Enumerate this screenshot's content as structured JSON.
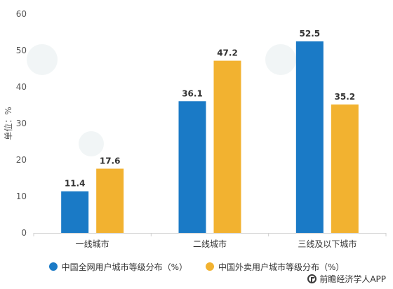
{
  "chart_data": {
    "type": "bar",
    "categories": [
      "一线城市",
      "二线城市",
      "三线及以下城市"
    ],
    "series": [
      {
        "name": "中国全网用户城市等级分布（%）",
        "color": "#1a7ac6",
        "values": [
          11.4,
          36.1,
          52.5
        ]
      },
      {
        "name": "中国外卖用户城市等级分布（%）",
        "color": "#f2b230",
        "values": [
          17.6,
          47.2,
          35.2
        ]
      }
    ],
    "data_labels": [
      [
        "11.4",
        "36.1",
        "52.5"
      ],
      [
        "17.6",
        "47.2",
        "35.2"
      ]
    ],
    "ylabel": "单位：%",
    "ylim": [
      0,
      60
    ],
    "yticks": [
      0,
      10,
      20,
      30,
      40,
      50,
      60
    ],
    "grid": false,
    "legend_position": "bottom"
  },
  "source": {
    "text": "前瞻经济学人APP"
  }
}
